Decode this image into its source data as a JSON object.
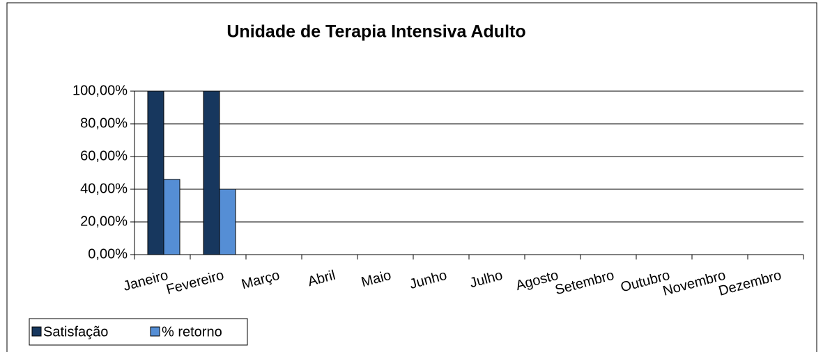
{
  "chart_data": {
    "type": "bar",
    "title": "Unidade de Terapia Intensiva Adulto",
    "categories": [
      "Janeiro",
      "Fevereiro",
      "Março",
      "Abril",
      "Maio",
      "Junho",
      "Julho",
      "Agosto",
      "Setembro",
      "Outubro",
      "Novembro",
      "Dezembro"
    ],
    "series": [
      {
        "name": "Satisfação",
        "color": "#17375e",
        "values": [
          100,
          100,
          null,
          null,
          null,
          null,
          null,
          null,
          null,
          null,
          null,
          null
        ]
      },
      {
        "name": "% retorno",
        "color": "#558ed5",
        "values": [
          46,
          40,
          null,
          null,
          null,
          null,
          null,
          null,
          null,
          null,
          null,
          null
        ]
      }
    ],
    "ylim": [
      0,
      100
    ],
    "yticks": [
      {
        "value": 0,
        "label": "0,00%"
      },
      {
        "value": 20,
        "label": "20,00%"
      },
      {
        "value": 40,
        "label": "40,00%"
      },
      {
        "value": 60,
        "label": "60,00%"
      },
      {
        "value": 80,
        "label": "80,00%"
      },
      {
        "value": 100,
        "label": "100,00%"
      }
    ],
    "grid": true,
    "legend": "bottom-left"
  }
}
